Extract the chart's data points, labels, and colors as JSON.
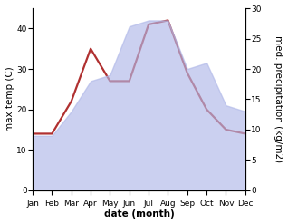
{
  "months": [
    "Jan",
    "Feb",
    "Mar",
    "Apr",
    "May",
    "Jun",
    "Jul",
    "Aug",
    "Sep",
    "Oct",
    "Nov",
    "Dec"
  ],
  "month_indices": [
    0,
    1,
    2,
    3,
    4,
    5,
    6,
    7,
    8,
    9,
    10,
    11
  ],
  "max_temp": [
    14,
    14,
    22,
    35,
    27,
    27,
    41,
    42,
    29,
    20,
    15,
    14
  ],
  "precipitation": [
    9,
    9,
    13,
    18,
    19,
    27,
    28,
    28,
    20,
    21,
    14,
    13
  ],
  "temp_color": "#b03030",
  "precip_fill_color": "#b0b8e8",
  "precip_fill_alpha": 0.65,
  "temp_linewidth": 1.6,
  "ylabel_left": "max temp (C)",
  "ylabel_right": "med. precipitation (kg/m2)",
  "xlabel": "date (month)",
  "ylim_left": [
    0,
    45
  ],
  "ylim_right": [
    0,
    30
  ],
  "yticks_left": [
    0,
    10,
    20,
    30,
    40
  ],
  "yticks_right": [
    0,
    5,
    10,
    15,
    20,
    25,
    30
  ],
  "background_color": "#ffffff",
  "label_fontsize": 7.5,
  "tick_fontsize": 6.5
}
